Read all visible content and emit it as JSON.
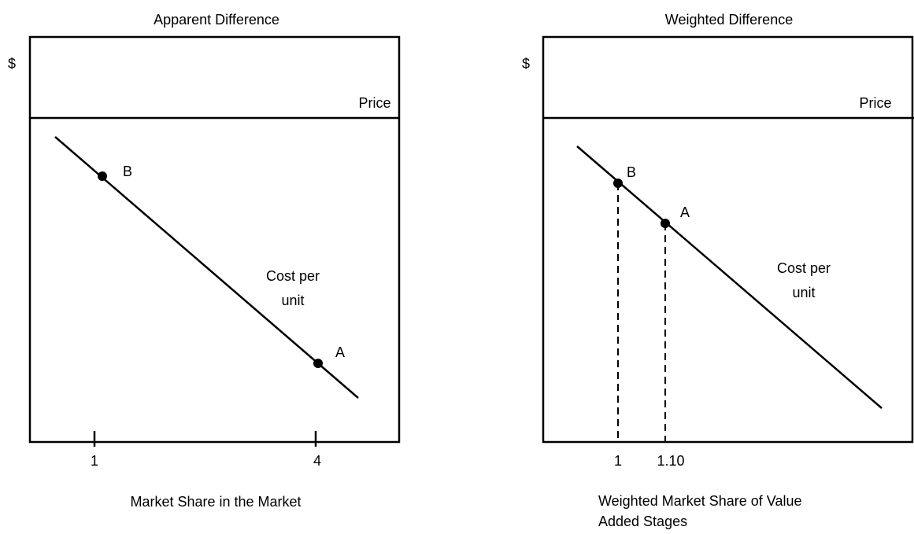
{
  "panels": [
    {
      "title": "Apparent Difference",
      "y_label": "$",
      "price_label": "Price",
      "curve_label": [
        "Cost per",
        "unit"
      ],
      "points": [
        "B",
        "A"
      ],
      "tick_labels": [
        "1",
        "4"
      ],
      "x_label": [
        "Market Share in the Market"
      ]
    },
    {
      "title": "Weighted Difference",
      "y_label": "$",
      "price_label": "Price",
      "curve_label": [
        "Cost per",
        "unit"
      ],
      "points": [
        "B",
        "A"
      ],
      "tick_labels": [
        "1",
        "1.10"
      ],
      "x_label": [
        "Weighted Market Share of Value",
        "Added Stages"
      ]
    }
  ]
}
